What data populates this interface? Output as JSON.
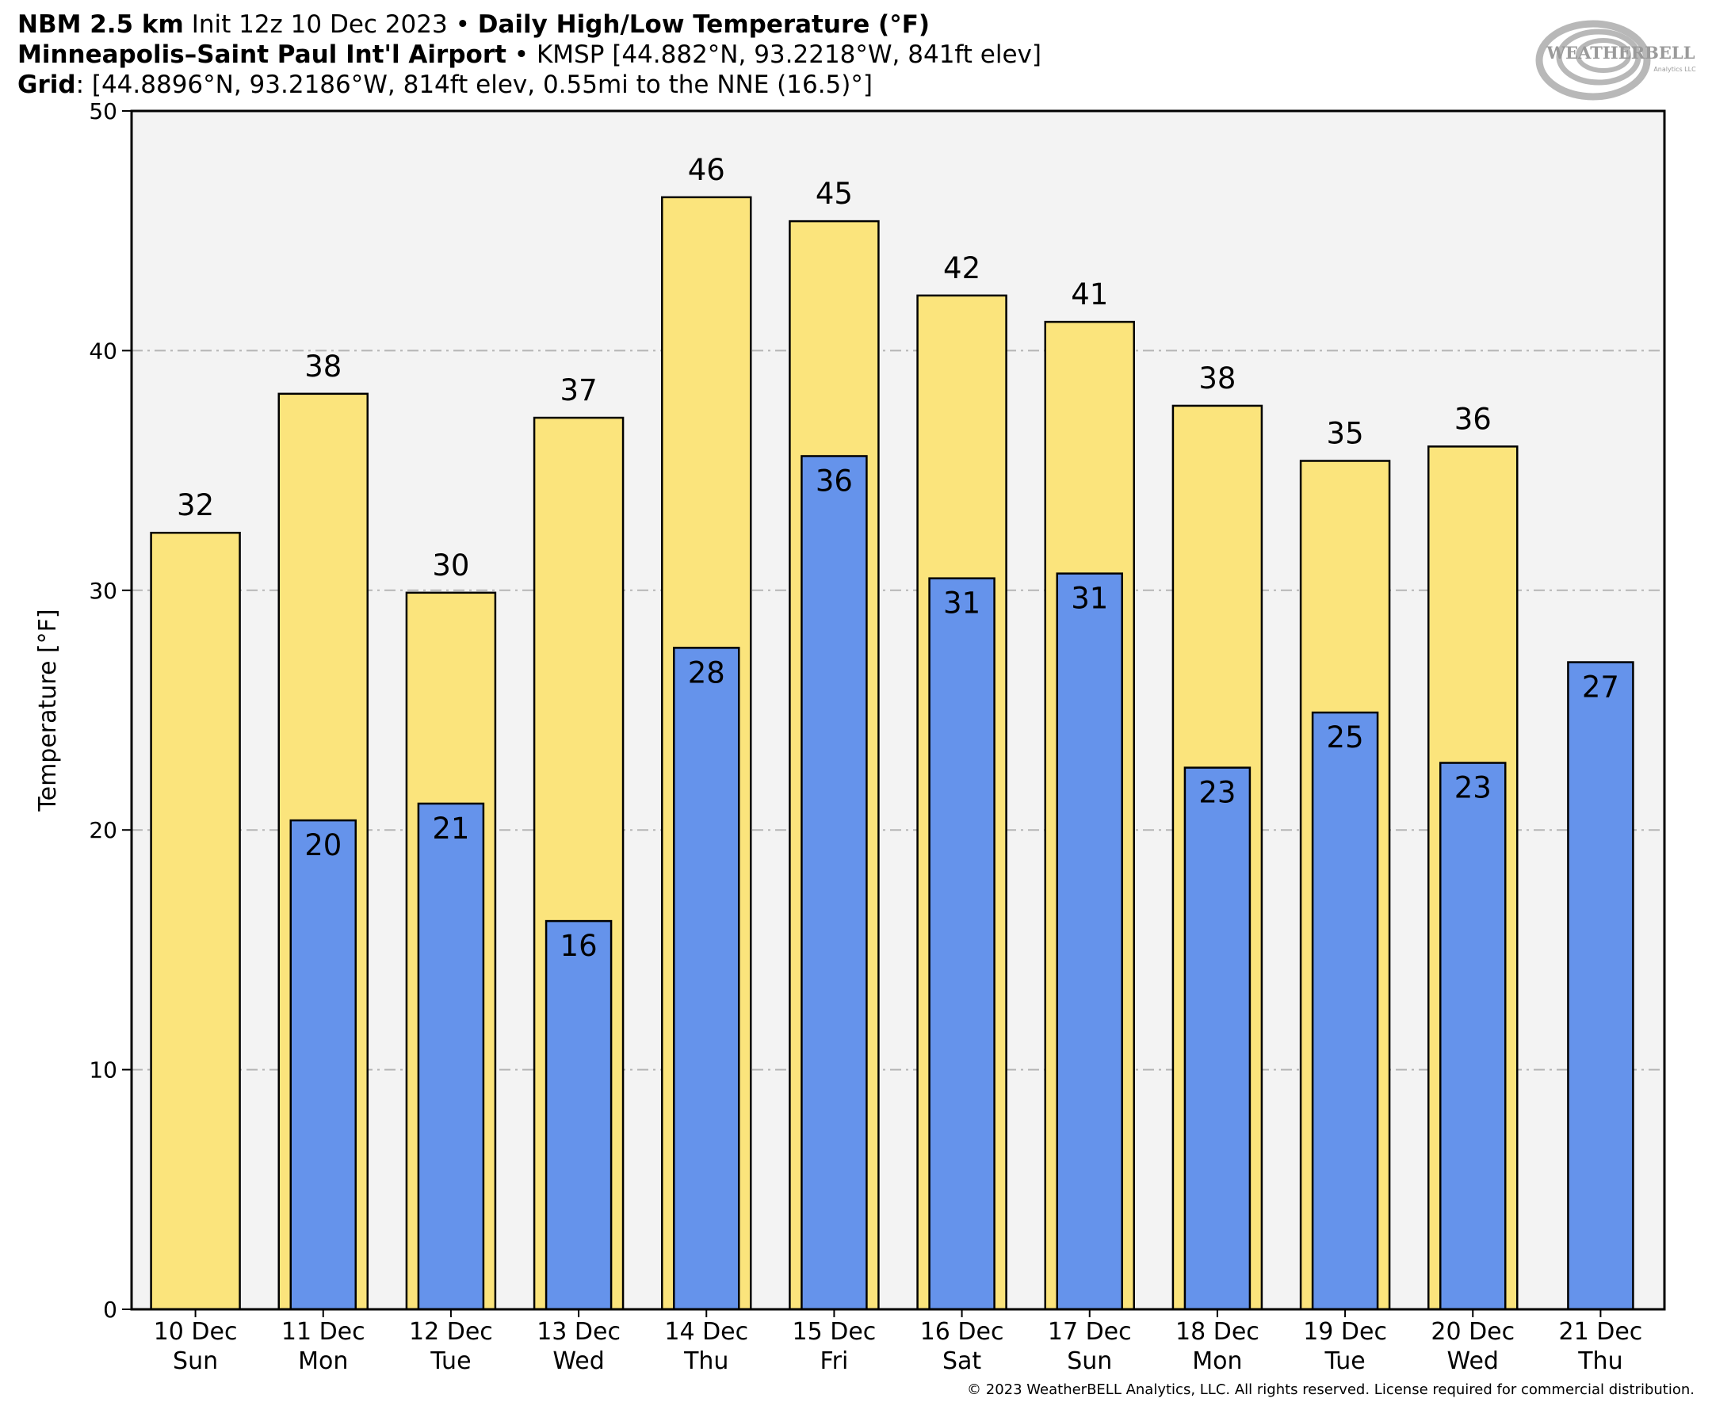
{
  "header": {
    "line1": {
      "model": "NBM 2.5 km",
      "init": "Init 12z 10 Dec 2023",
      "product": "Daily High/Low Temperature (°F)"
    },
    "line2": {
      "station_name": "Minneapolis–Saint Paul Int'l Airport",
      "station_info": "KMSP [44.882°N, 93.2218°W, 841ft elev]"
    },
    "line3": {
      "label": "Grid",
      "info": ": [44.8896°N, 93.2186°W, 814ft elev, 0.55mi to the NNE (16.5)°]"
    }
  },
  "logo": {
    "text": "WEATHERBELL",
    "subtext": "Analytics LLC"
  },
  "copyright": "© 2023 WeatherBELL Analytics, LLC. All rights reserved. License required for commercial distribution.",
  "colors": {
    "high": "#fbe47c",
    "low": "#6593eb",
    "plot_bg": "#f3f3f3"
  },
  "chart_data": {
    "type": "bar",
    "ylabel": "Temperature [°F]",
    "ylim": [
      0,
      50
    ],
    "yticks": [
      0,
      10,
      20,
      30,
      40,
      50
    ],
    "grid": true,
    "categories": [
      [
        "10 Dec",
        "Sun"
      ],
      [
        "11 Dec",
        "Mon"
      ],
      [
        "12 Dec",
        "Tue"
      ],
      [
        "13 Dec",
        "Wed"
      ],
      [
        "14 Dec",
        "Thu"
      ],
      [
        "15 Dec",
        "Fri"
      ],
      [
        "16 Dec",
        "Sat"
      ],
      [
        "17 Dec",
        "Sun"
      ],
      [
        "18 Dec",
        "Mon"
      ],
      [
        "19 Dec",
        "Tue"
      ],
      [
        "20 Dec",
        "Wed"
      ],
      [
        "21 Dec",
        "Thu"
      ]
    ],
    "series": [
      {
        "values": [
          32.4,
          38.2,
          29.9,
          37.2,
          46.4,
          45.4,
          42.3,
          41.2,
          37.7,
          35.4,
          36.0,
          null
        ],
        "labels": [
          "32",
          "38",
          "30",
          "37",
          "46",
          "45",
          "42",
          "41",
          "38",
          "35",
          "36",
          ""
        ]
      },
      {
        "values": [
          null,
          20.4,
          21.1,
          16.2,
          27.6,
          35.6,
          30.5,
          30.7,
          22.6,
          24.9,
          22.8,
          27.0
        ],
        "labels": [
          "",
          "20",
          "21",
          "16",
          "28",
          "36",
          "31",
          "31",
          "23",
          "25",
          "23",
          "27"
        ]
      }
    ]
  }
}
